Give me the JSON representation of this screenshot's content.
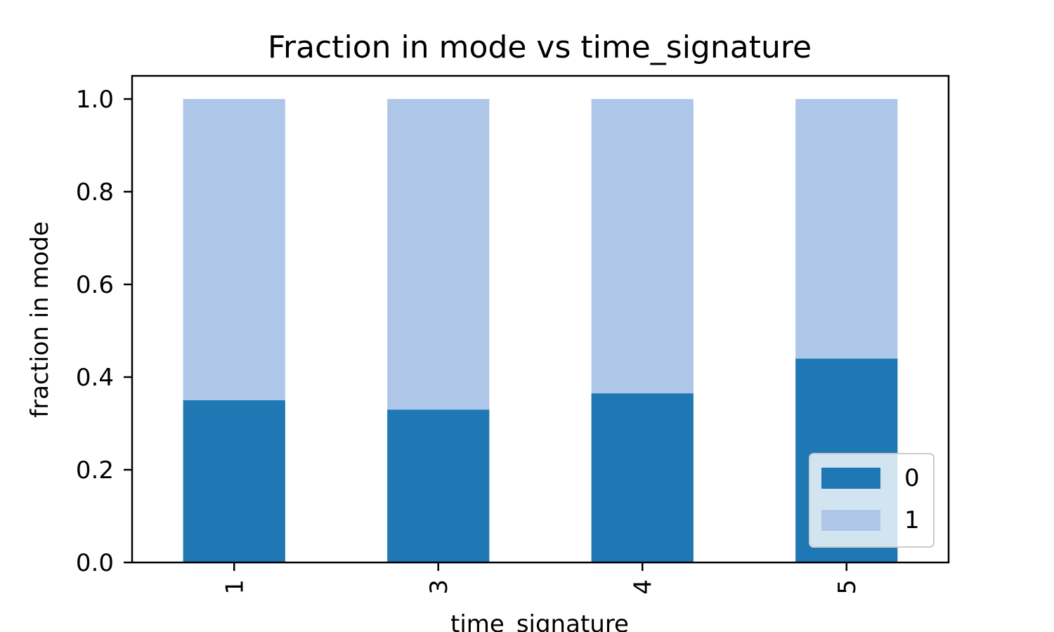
{
  "chart_data": {
    "type": "bar",
    "stacked": true,
    "title": "Fraction in mode vs time_signature",
    "xlabel": "time_signature",
    "ylabel": "fraction in mode",
    "categories": [
      "1",
      "3",
      "4",
      "5"
    ],
    "series": [
      {
        "name": "0",
        "color": "#1f77b4",
        "values": [
          0.35,
          0.33,
          0.365,
          0.44
        ]
      },
      {
        "name": "1",
        "color": "#aec7e8",
        "values": [
          0.65,
          0.67,
          0.635,
          0.56
        ]
      }
    ],
    "ylim": [
      0,
      1.05
    ],
    "yticks": [
      "0.0",
      "0.2",
      "0.4",
      "0.6",
      "0.8",
      "1.0"
    ],
    "grid": false,
    "legend_position": "lower-right"
  }
}
